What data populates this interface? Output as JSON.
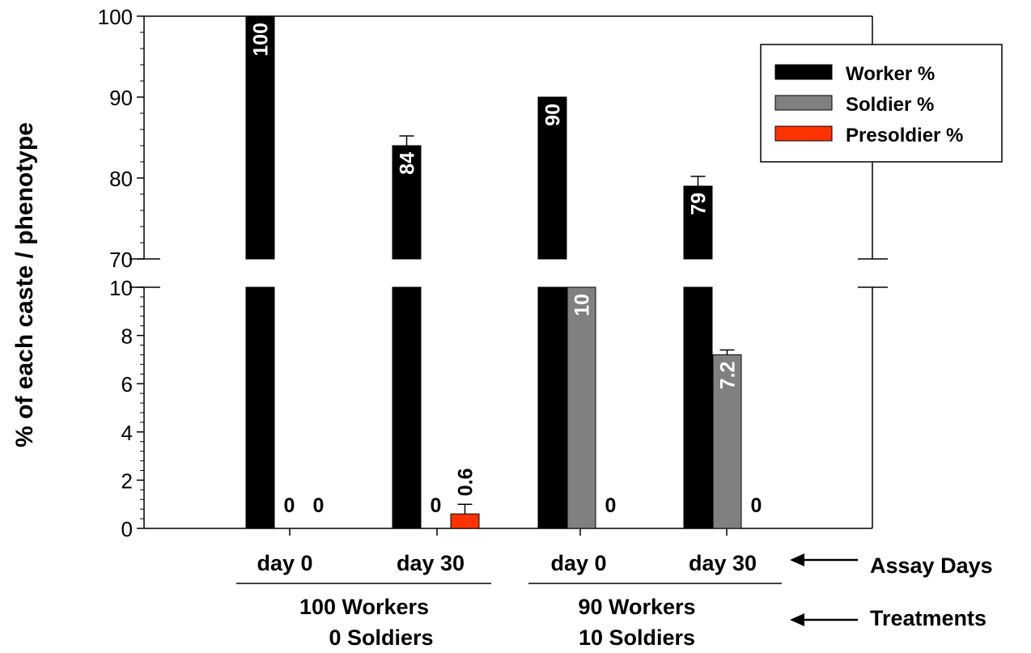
{
  "chart_data": {
    "type": "bar",
    "ylabel": "% of each caste / phenotype",
    "axis_break": {
      "lower_range": [
        0,
        10
      ],
      "upper_range": [
        70,
        100
      ]
    },
    "yticks_upper": [
      "70",
      "80",
      "90",
      "100"
    ],
    "yticks_lower": [
      "0",
      "2",
      "4",
      "6",
      "8",
      "10"
    ],
    "categories": [
      "day 0",
      "day 30",
      "day 0",
      "day 30"
    ],
    "groups": [
      {
        "label_line1": "100 Workers",
        "label_line2": "0 Soldiers"
      },
      {
        "label_line1": "90 Workers",
        "label_line2": "10 Soldiers"
      }
    ],
    "series": [
      {
        "name": "Worker %",
        "color": "#000000",
        "values": [
          100,
          84,
          90,
          79
        ],
        "errors": [
          0,
          1.2,
          0,
          1.2
        ],
        "value_labels": [
          "100",
          "84",
          "90",
          "79"
        ]
      },
      {
        "name": "Soldier %",
        "color": "#808080",
        "values": [
          0,
          0,
          10,
          7.2
        ],
        "errors": [
          0,
          0,
          0,
          0.2
        ],
        "value_labels": [
          "0",
          "0",
          "10",
          "7.2"
        ]
      },
      {
        "name": "Presoldier %",
        "color": "#ff3300",
        "values": [
          0,
          0.6,
          0,
          0
        ],
        "errors": [
          0,
          0.4,
          0,
          0
        ],
        "value_labels": [
          "0",
          "0.6",
          "0",
          "0"
        ]
      }
    ],
    "annotations": {
      "assay_days": "Assay Days",
      "treatments": "Treatments"
    }
  }
}
